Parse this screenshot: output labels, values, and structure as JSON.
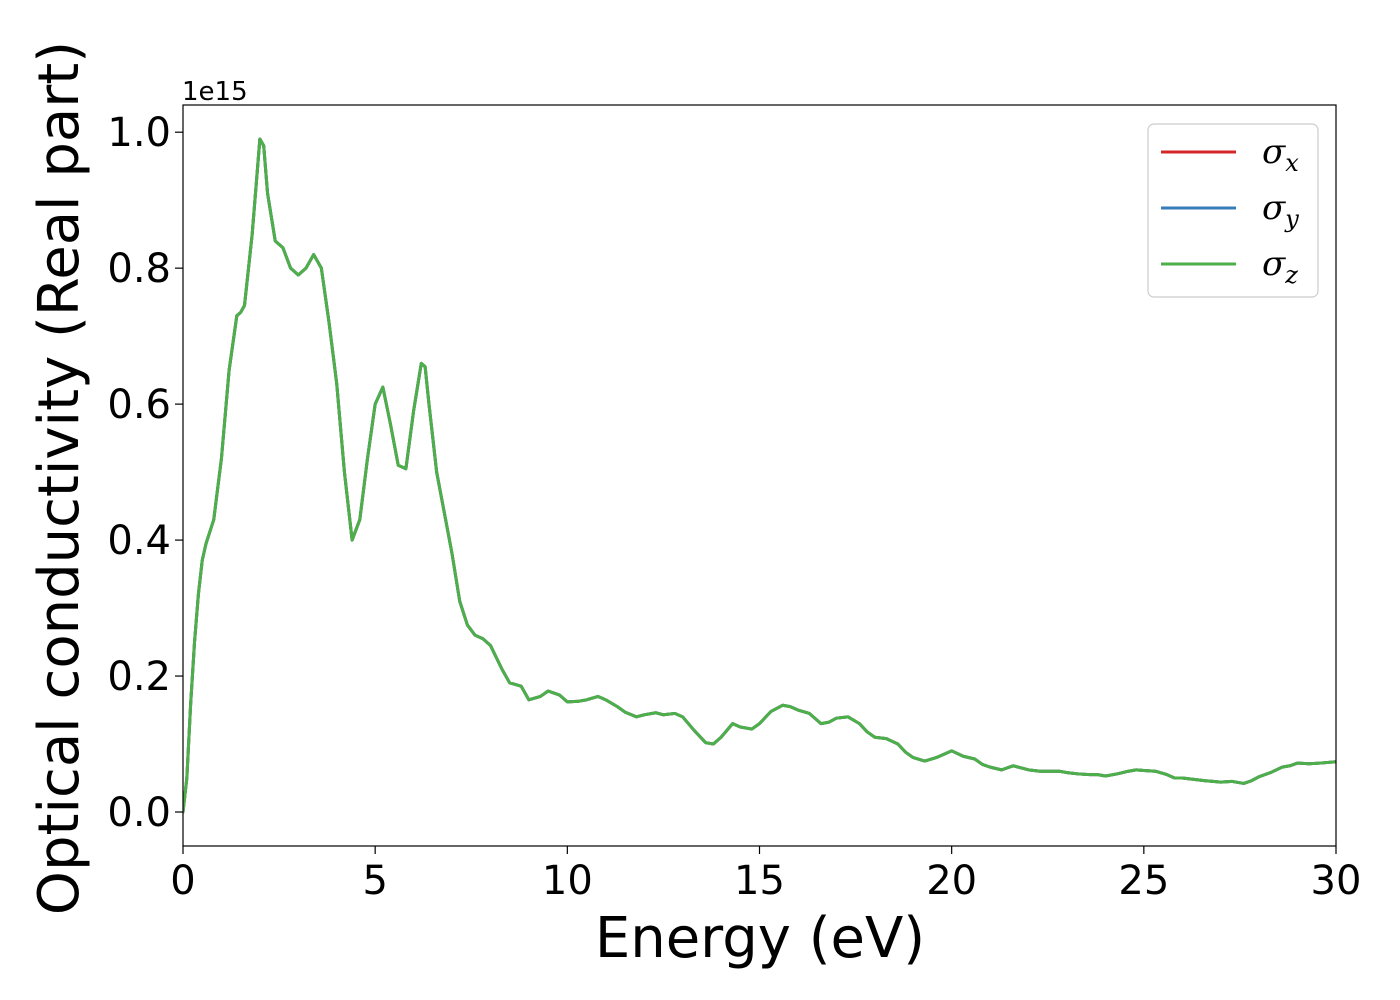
{
  "chart_data": {
    "type": "line",
    "xlabel": "Energy (eV)",
    "ylabel": "Optical conductivity (Real part)",
    "y_offset_label": "1e15",
    "xlim": [
      0,
      30
    ],
    "ylim": [
      -0.05,
      1.04
    ],
    "xticks": [
      0,
      5,
      10,
      15,
      20,
      25,
      30
    ],
    "yticks": [
      0.0,
      0.2,
      0.4,
      0.6,
      0.8,
      1.0
    ],
    "grid": false,
    "legend_position": "top-right",
    "series": [
      {
        "name": "σ",
        "subscript": "x",
        "color": "#d62728",
        "x": [
          0,
          0.1,
          0.2,
          0.3,
          0.4,
          0.5,
          0.6,
          0.8,
          1.0,
          1.2,
          1.4,
          1.5,
          1.6,
          1.8,
          2.0,
          2.1,
          2.2,
          2.4,
          2.6,
          2.8,
          3.0,
          3.2,
          3.4,
          3.6,
          3.8,
          4.0,
          4.2,
          4.4,
          4.6,
          4.8,
          5.0,
          5.2,
          5.4,
          5.6,
          5.8,
          6.0,
          6.2,
          6.3,
          6.4,
          6.6,
          6.8,
          7.0,
          7.2,
          7.4,
          7.6,
          7.8,
          8.0,
          8.3,
          8.5,
          8.8,
          9.0,
          9.3,
          9.5,
          9.8,
          10.0,
          10.3,
          10.5,
          10.8,
          11.0,
          11.3,
          11.5,
          11.8,
          12.0,
          12.3,
          12.5,
          12.8,
          13.0,
          13.3,
          13.6,
          13.8,
          14.0,
          14.3,
          14.5,
          14.8,
          15.0,
          15.3,
          15.6,
          15.8,
          16.0,
          16.3,
          16.6,
          16.8,
          17.0,
          17.3,
          17.6,
          17.8,
          18.0,
          18.3,
          18.6,
          18.8,
          19.0,
          19.3,
          19.6,
          19.8,
          20.0,
          20.3,
          20.6,
          20.8,
          21.0,
          21.3,
          21.6,
          21.8,
          22.0,
          22.3,
          22.6,
          22.8,
          23.0,
          23.3,
          23.6,
          23.8,
          24.0,
          24.3,
          24.6,
          24.8,
          25.0,
          25.3,
          25.6,
          25.8,
          26.0,
          26.3,
          26.6,
          26.8,
          27.0,
          27.3,
          27.6,
          27.8,
          28.0,
          28.3,
          28.6,
          28.8,
          29.0,
          29.3,
          29.6,
          30.0
        ],
        "y": [
          0.0,
          0.05,
          0.16,
          0.25,
          0.32,
          0.37,
          0.395,
          0.43,
          0.52,
          0.65,
          0.73,
          0.735,
          0.745,
          0.85,
          0.99,
          0.98,
          0.91,
          0.84,
          0.83,
          0.8,
          0.79,
          0.8,
          0.82,
          0.8,
          0.72,
          0.63,
          0.5,
          0.4,
          0.43,
          0.52,
          0.6,
          0.625,
          0.57,
          0.51,
          0.505,
          0.59,
          0.66,
          0.655,
          0.6,
          0.5,
          0.44,
          0.38,
          0.31,
          0.275,
          0.26,
          0.255,
          0.245,
          0.21,
          0.19,
          0.185,
          0.165,
          0.17,
          0.178,
          0.172,
          0.162,
          0.163,
          0.165,
          0.17,
          0.165,
          0.155,
          0.147,
          0.14,
          0.143,
          0.146,
          0.143,
          0.145,
          0.14,
          0.12,
          0.102,
          0.1,
          0.11,
          0.13,
          0.125,
          0.122,
          0.13,
          0.148,
          0.157,
          0.155,
          0.15,
          0.145,
          0.13,
          0.132,
          0.138,
          0.14,
          0.13,
          0.118,
          0.11,
          0.108,
          0.1,
          0.088,
          0.08,
          0.075,
          0.08,
          0.085,
          0.09,
          0.082,
          0.078,
          0.07,
          0.066,
          0.062,
          0.068,
          0.065,
          0.062,
          0.06,
          0.06,
          0.06,
          0.058,
          0.056,
          0.055,
          0.055,
          0.053,
          0.056,
          0.06,
          0.062,
          0.061,
          0.06,
          0.055,
          0.05,
          0.05,
          0.048,
          0.046,
          0.045,
          0.044,
          0.045,
          0.042,
          0.046,
          0.052,
          0.058,
          0.066,
          0.068,
          0.072,
          0.071,
          0.072,
          0.074
        ]
      },
      {
        "name": "σ",
        "subscript": "y",
        "color": "#377eb8",
        "x": [
          0,
          0.1,
          0.2,
          0.3,
          0.4,
          0.5,
          0.6,
          0.8,
          1.0,
          1.2,
          1.4,
          1.5,
          1.6,
          1.8,
          2.0,
          2.1,
          2.2,
          2.4,
          2.6,
          2.8,
          3.0,
          3.2,
          3.4,
          3.6,
          3.8,
          4.0,
          4.2,
          4.4,
          4.6,
          4.8,
          5.0,
          5.2,
          5.4,
          5.6,
          5.8,
          6.0,
          6.2,
          6.3,
          6.4,
          6.6,
          6.8,
          7.0,
          7.2,
          7.4,
          7.6,
          7.8,
          8.0,
          8.3,
          8.5,
          8.8,
          9.0,
          9.3,
          9.5,
          9.8,
          10.0,
          10.3,
          10.5,
          10.8,
          11.0,
          11.3,
          11.5,
          11.8,
          12.0,
          12.3,
          12.5,
          12.8,
          13.0,
          13.3,
          13.6,
          13.8,
          14.0,
          14.3,
          14.5,
          14.8,
          15.0,
          15.3,
          15.6,
          15.8,
          16.0,
          16.3,
          16.6,
          16.8,
          17.0,
          17.3,
          17.6,
          17.8,
          18.0,
          18.3,
          18.6,
          18.8,
          19.0,
          19.3,
          19.6,
          19.8,
          20.0,
          20.3,
          20.6,
          20.8,
          21.0,
          21.3,
          21.6,
          21.8,
          22.0,
          22.3,
          22.6,
          22.8,
          23.0,
          23.3,
          23.6,
          23.8,
          24.0,
          24.3,
          24.6,
          24.8,
          25.0,
          25.3,
          25.6,
          25.8,
          26.0,
          26.3,
          26.6,
          26.8,
          27.0,
          27.3,
          27.6,
          27.8,
          28.0,
          28.3,
          28.6,
          28.8,
          29.0,
          29.3,
          29.6,
          30.0
        ],
        "y": [
          0.0,
          0.05,
          0.16,
          0.25,
          0.32,
          0.37,
          0.395,
          0.43,
          0.52,
          0.65,
          0.73,
          0.735,
          0.745,
          0.85,
          0.99,
          0.98,
          0.91,
          0.84,
          0.83,
          0.8,
          0.79,
          0.8,
          0.82,
          0.8,
          0.72,
          0.63,
          0.5,
          0.4,
          0.43,
          0.52,
          0.6,
          0.625,
          0.57,
          0.51,
          0.505,
          0.59,
          0.66,
          0.655,
          0.6,
          0.5,
          0.44,
          0.38,
          0.31,
          0.275,
          0.26,
          0.255,
          0.245,
          0.21,
          0.19,
          0.185,
          0.165,
          0.17,
          0.178,
          0.172,
          0.162,
          0.163,
          0.165,
          0.17,
          0.165,
          0.155,
          0.147,
          0.14,
          0.143,
          0.146,
          0.143,
          0.145,
          0.14,
          0.12,
          0.102,
          0.1,
          0.11,
          0.13,
          0.125,
          0.122,
          0.13,
          0.148,
          0.157,
          0.155,
          0.15,
          0.145,
          0.13,
          0.132,
          0.138,
          0.14,
          0.13,
          0.118,
          0.11,
          0.108,
          0.1,
          0.088,
          0.08,
          0.075,
          0.08,
          0.085,
          0.09,
          0.082,
          0.078,
          0.07,
          0.066,
          0.062,
          0.068,
          0.065,
          0.062,
          0.06,
          0.06,
          0.06,
          0.058,
          0.056,
          0.055,
          0.055,
          0.053,
          0.056,
          0.06,
          0.062,
          0.061,
          0.06,
          0.055,
          0.05,
          0.05,
          0.048,
          0.046,
          0.045,
          0.044,
          0.045,
          0.042,
          0.046,
          0.052,
          0.058,
          0.066,
          0.068,
          0.072,
          0.071,
          0.072,
          0.074
        ]
      },
      {
        "name": "σ",
        "subscript": "z",
        "color": "#4daf4a",
        "x": [
          0,
          0.1,
          0.2,
          0.3,
          0.4,
          0.5,
          0.6,
          0.8,
          1.0,
          1.2,
          1.4,
          1.5,
          1.6,
          1.8,
          2.0,
          2.1,
          2.2,
          2.4,
          2.6,
          2.8,
          3.0,
          3.2,
          3.4,
          3.6,
          3.8,
          4.0,
          4.2,
          4.4,
          4.6,
          4.8,
          5.0,
          5.2,
          5.4,
          5.6,
          5.8,
          6.0,
          6.2,
          6.3,
          6.4,
          6.6,
          6.8,
          7.0,
          7.2,
          7.4,
          7.6,
          7.8,
          8.0,
          8.3,
          8.5,
          8.8,
          9.0,
          9.3,
          9.5,
          9.8,
          10.0,
          10.3,
          10.5,
          10.8,
          11.0,
          11.3,
          11.5,
          11.8,
          12.0,
          12.3,
          12.5,
          12.8,
          13.0,
          13.3,
          13.6,
          13.8,
          14.0,
          14.3,
          14.5,
          14.8,
          15.0,
          15.3,
          15.6,
          15.8,
          16.0,
          16.3,
          16.6,
          16.8,
          17.0,
          17.3,
          17.6,
          17.8,
          18.0,
          18.3,
          18.6,
          18.8,
          19.0,
          19.3,
          19.6,
          19.8,
          20.0,
          20.3,
          20.6,
          20.8,
          21.0,
          21.3,
          21.6,
          21.8,
          22.0,
          22.3,
          22.6,
          22.8,
          23.0,
          23.3,
          23.6,
          23.8,
          24.0,
          24.3,
          24.6,
          24.8,
          25.0,
          25.3,
          25.6,
          25.8,
          26.0,
          26.3,
          26.6,
          26.8,
          27.0,
          27.3,
          27.6,
          27.8,
          28.0,
          28.3,
          28.6,
          28.8,
          29.0,
          29.3,
          29.6,
          30.0
        ],
        "y": [
          0.0,
          0.05,
          0.16,
          0.25,
          0.32,
          0.37,
          0.395,
          0.43,
          0.52,
          0.65,
          0.73,
          0.735,
          0.745,
          0.85,
          0.99,
          0.98,
          0.91,
          0.84,
          0.83,
          0.8,
          0.79,
          0.8,
          0.82,
          0.8,
          0.72,
          0.63,
          0.5,
          0.4,
          0.43,
          0.52,
          0.6,
          0.625,
          0.57,
          0.51,
          0.505,
          0.59,
          0.66,
          0.655,
          0.6,
          0.5,
          0.44,
          0.38,
          0.31,
          0.275,
          0.26,
          0.255,
          0.245,
          0.21,
          0.19,
          0.185,
          0.165,
          0.17,
          0.178,
          0.172,
          0.162,
          0.163,
          0.165,
          0.17,
          0.165,
          0.155,
          0.147,
          0.14,
          0.143,
          0.146,
          0.143,
          0.145,
          0.14,
          0.12,
          0.102,
          0.1,
          0.11,
          0.13,
          0.125,
          0.122,
          0.13,
          0.148,
          0.157,
          0.155,
          0.15,
          0.145,
          0.13,
          0.132,
          0.138,
          0.14,
          0.13,
          0.118,
          0.11,
          0.108,
          0.1,
          0.088,
          0.08,
          0.075,
          0.08,
          0.085,
          0.09,
          0.082,
          0.078,
          0.07,
          0.066,
          0.062,
          0.068,
          0.065,
          0.062,
          0.06,
          0.06,
          0.06,
          0.058,
          0.056,
          0.055,
          0.055,
          0.053,
          0.056,
          0.06,
          0.062,
          0.061,
          0.06,
          0.055,
          0.05,
          0.05,
          0.048,
          0.046,
          0.045,
          0.044,
          0.045,
          0.042,
          0.046,
          0.052,
          0.058,
          0.066,
          0.068,
          0.072,
          0.071,
          0.072,
          0.074
        ]
      }
    ]
  }
}
